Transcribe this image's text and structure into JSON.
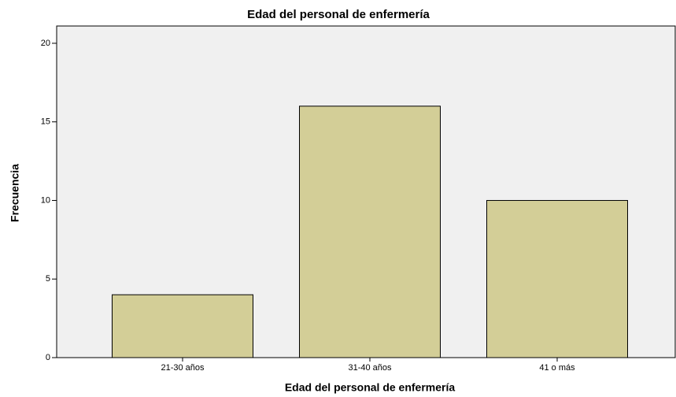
{
  "chart_data": {
    "type": "bar",
    "title": "Edad del personal de enfermería",
    "x_label": "Edad del personal de enfermería",
    "y_label": "Frecuencia",
    "categories": [
      "21-30 años",
      "31-40 años",
      "41 o más"
    ],
    "values": [
      4,
      16,
      10
    ],
    "color": "#d3ce97",
    "ylim": [
      0,
      21.1
    ],
    "yticks": [
      0,
      5,
      10,
      15,
      20
    ],
    "grid": false
  }
}
